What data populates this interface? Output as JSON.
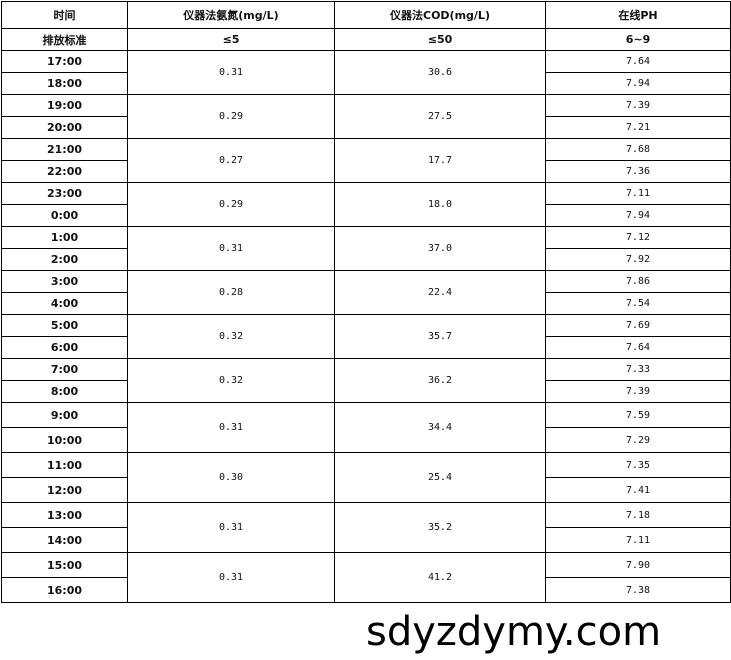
{
  "headers": [
    "时间",
    "仪器法氨氮(mg/L)",
    "仪器法COD(mg/L)",
    "在线PH"
  ],
  "standard": [
    "排放标准",
    "≤5",
    "≤50",
    "6~9"
  ],
  "groups": [
    {
      "times": [
        "17:00",
        "18:00"
      ],
      "ammonia": "0.31",
      "cod": "30.6",
      "ph": [
        "7.64",
        "7.94"
      ]
    },
    {
      "times": [
        "19:00",
        "20:00"
      ],
      "ammonia": "0.29",
      "cod": "27.5",
      "ph": [
        "7.39",
        "7.21"
      ]
    },
    {
      "times": [
        "21:00",
        "22:00"
      ],
      "ammonia": "0.27",
      "cod": "17.7",
      "ph": [
        "7.68",
        "7.36"
      ]
    },
    {
      "times": [
        "23:00",
        "0:00"
      ],
      "ammonia": "0.29",
      "cod": "18.0",
      "ph": [
        "7.11",
        "7.94"
      ]
    },
    {
      "times": [
        "1:00",
        "2:00"
      ],
      "ammonia": "0.31",
      "cod": "37.0",
      "ph": [
        "7.12",
        "7.92"
      ]
    },
    {
      "times": [
        "3:00",
        "4:00"
      ],
      "ammonia": "0.28",
      "cod": "22.4",
      "ph": [
        "7.86",
        "7.54"
      ]
    },
    {
      "times": [
        "5:00",
        "6:00"
      ],
      "ammonia": "0.32",
      "cod": "35.7",
      "ph": [
        "7.69",
        "7.64"
      ]
    },
    {
      "times": [
        "7:00",
        "8:00"
      ],
      "ammonia": "0.32",
      "cod": "36.2",
      "ph": [
        "7.33",
        "7.39"
      ]
    },
    {
      "times": [
        "9:00",
        "10:00"
      ],
      "ammonia": "0.31",
      "cod": "34.4",
      "ph": [
        "7.59",
        "7.29"
      ]
    },
    {
      "times": [
        "11:00",
        "12:00"
      ],
      "ammonia": "0.30",
      "cod": "25.4",
      "ph": [
        "7.35",
        "7.41"
      ]
    },
    {
      "times": [
        "13:00",
        "14:00"
      ],
      "ammonia": "0.31",
      "cod": "35.2",
      "ph": [
        "7.18",
        "7.11"
      ]
    },
    {
      "times": [
        "15:00",
        "16:00"
      ],
      "ammonia": "0.31",
      "cod": "41.2",
      "ph": [
        "7.90",
        "7.38"
      ]
    }
  ],
  "watermark": "sdyzdymy.com"
}
